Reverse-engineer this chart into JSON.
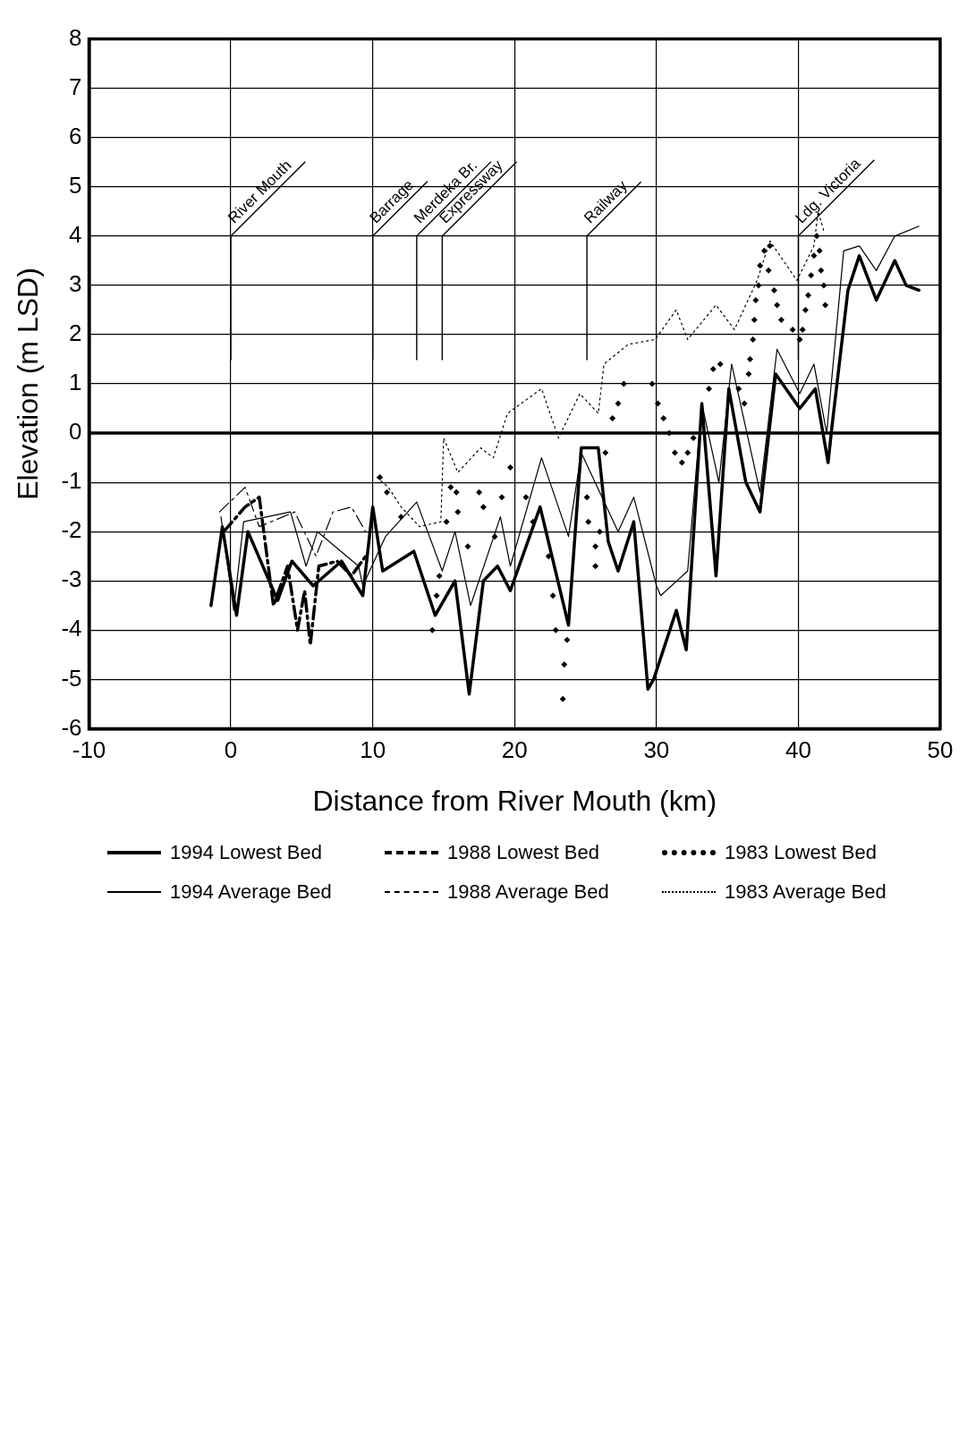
{
  "chart_data": {
    "type": "line",
    "xlabel": "Distance from River Mouth (km)",
    "ylabel": "Elevation (m LSD)",
    "xlim": [
      -10,
      50
    ],
    "xticks": [
      -10,
      0,
      10,
      20,
      30,
      40,
      50
    ],
    "ylim": [
      -6,
      8
    ],
    "yticks": [
      -6,
      -5,
      -4,
      -3,
      -2,
      -1,
      0,
      1,
      2,
      3,
      4,
      5,
      6,
      7,
      8
    ],
    "grid": true,
    "legend": "bottom",
    "ref_lines": [
      {
        "axis": "y",
        "value": 0
      },
      {
        "axis": "x",
        "value": 0,
        "label": "River Mouth"
      },
      {
        "axis": "x",
        "value": 10,
        "label": "Barrage"
      },
      {
        "axis": "x",
        "value": 13.1,
        "label": "Merdeka Br."
      },
      {
        "axis": "x",
        "value": 14.9,
        "label": "Expressway"
      },
      {
        "axis": "x",
        "value": 25.1,
        "label": "Railway"
      },
      {
        "axis": "x",
        "value": 40,
        "label": "Ldg. Victoria"
      }
    ],
    "series": [
      {
        "name": "1994 Lowest Bed",
        "type": "line",
        "line_style": "solid",
        "color": "#000000",
        "x": [
          -1.4,
          -0.6,
          0.4,
          1.2,
          3.3,
          4.3,
          5.8,
          7.8,
          9.3,
          10.0,
          10.7,
          12.9,
          14.4,
          15.8,
          16.8,
          17.8,
          18.8,
          19.7,
          21.8,
          23.8,
          24.7,
          25.9,
          26.6,
          27.3,
          28.4,
          29.4,
          29.8,
          31.4,
          32.1,
          33.2,
          34.2,
          35.1,
          36.3,
          37.3,
          38.4,
          40.1,
          41.2,
          42.1,
          42.4,
          43.5,
          44.3,
          45.5,
          46.8,
          47.6,
          48.5
        ],
        "values": [
          -3.5,
          -1.9,
          -3.7,
          -2.0,
          -3.4,
          -2.6,
          -3.1,
          -2.6,
          -3.3,
          -1.5,
          -2.8,
          -2.4,
          -3.7,
          -3.0,
          -5.3,
          -3.0,
          -2.7,
          -3.2,
          -1.5,
          -3.9,
          -0.3,
          -0.3,
          -2.2,
          -2.8,
          -1.8,
          -5.2,
          -5.0,
          -3.6,
          -4.4,
          0.6,
          -2.9,
          0.9,
          -1.0,
          -1.6,
          1.2,
          0.5,
          0.9,
          -0.6,
          0.2,
          2.9,
          3.6,
          2.7,
          3.5,
          3.0,
          2.9
        ]
      },
      {
        "name": "1994 Average Bed",
        "type": "line",
        "line_style": "solid",
        "color": "#000000",
        "x": [
          -0.7,
          0.2,
          0.9,
          4.2,
          5.3,
          6.1,
          9.0,
          9.3,
          10.9,
          13.1,
          14.9,
          15.8,
          16.9,
          19.0,
          19.7,
          21.9,
          23.8,
          24.7,
          27.3,
          28.4,
          30.0,
          30.3,
          32.2,
          33.2,
          34.4,
          35.3,
          37.3,
          38.5,
          40.1,
          41.1,
          42.0,
          43.2,
          44.3,
          45.5,
          46.8,
          48.5
        ],
        "values": [
          -1.7,
          -3.6,
          -1.8,
          -1.6,
          -2.7,
          -2.0,
          -2.7,
          -3.1,
          -2.1,
          -1.4,
          -2.8,
          -2.0,
          -3.5,
          -1.7,
          -2.7,
          -0.5,
          -2.1,
          -0.4,
          -2.0,
          -1.3,
          -3.1,
          -3.3,
          -2.8,
          0.6,
          -1.0,
          1.4,
          -1.2,
          1.7,
          0.8,
          1.4,
          0.0,
          3.7,
          3.8,
          3.3,
          4.0,
          4.2
        ]
      },
      {
        "name": "1988 Lowest Bed",
        "type": "line",
        "line_style": "dashed",
        "color": "#000000",
        "x": [
          -0.5,
          1.0,
          2.0,
          3.0,
          4.0,
          4.7,
          5.2,
          5.6,
          6.2,
          7.5,
          8.5,
          9.5
        ],
        "values": [
          -2.0,
          -1.5,
          -1.3,
          -3.5,
          -2.7,
          -4.0,
          -3.2,
          -4.3,
          -2.7,
          -2.6,
          -2.9,
          -2.5
        ]
      },
      {
        "name": "1988 Average Bed",
        "type": "line",
        "line_style": "dashed",
        "color": "#000000",
        "x": [
          -0.8,
          1.0,
          2.0,
          4.5,
          6.0,
          7.2,
          8.5,
          9.5
        ],
        "values": [
          -1.6,
          -1.1,
          -1.9,
          -1.6,
          -2.5,
          -1.6,
          -1.5,
          -2.0
        ]
      },
      {
        "name": "1983 Lowest Bed",
        "type": "scatter",
        "marker": "diamond",
        "color": "#000000",
        "x": [
          10.5,
          11.0,
          12.0,
          14.2,
          14.5,
          14.7,
          15.2,
          15.5,
          15.9,
          16.0,
          16.7,
          17.5,
          17.8,
          18.6,
          19.1,
          19.7,
          20.8,
          21.3,
          22.4,
          22.7,
          22.9,
          23.4,
          23.5,
          23.7,
          25.1,
          25.2,
          25.7,
          25.7,
          26.0,
          26.4,
          26.9,
          27.3,
          27.7,
          29.7,
          30.1,
          30.5,
          30.9,
          31.3,
          31.8,
          32.2,
          32.6,
          33.7,
          34.0,
          34.5,
          35.8,
          36.2,
          36.5,
          36.6,
          36.8,
          36.9,
          37.0,
          37.2,
          37.3,
          37.6,
          37.9,
          38.0,
          38.3,
          38.5,
          38.8,
          39.6,
          40.1,
          40.3,
          40.5,
          40.7,
          40.9,
          41.1,
          41.3,
          41.5,
          41.6,
          41.8,
          41.9
        ],
        "values": [
          -0.9,
          -1.2,
          -1.7,
          -4.0,
          -3.3,
          -2.9,
          -1.8,
          -1.1,
          -1.2,
          -1.6,
          -2.3,
          -1.2,
          -1.5,
          -2.1,
          -1.3,
          -0.7,
          -1.3,
          -1.8,
          -2.5,
          -3.3,
          -4.0,
          -5.4,
          -4.7,
          -4.2,
          -1.3,
          -1.8,
          -2.3,
          -2.7,
          -2.0,
          -0.4,
          0.3,
          0.6,
          1.0,
          1.0,
          0.6,
          0.3,
          0.0,
          -0.4,
          -0.6,
          -0.4,
          -0.1,
          0.9,
          1.3,
          1.4,
          0.9,
          0.6,
          1.2,
          1.5,
          1.9,
          2.3,
          2.7,
          3.0,
          3.4,
          3.7,
          3.3,
          3.8,
          2.9,
          2.6,
          2.3,
          2.1,
          1.9,
          2.1,
          2.5,
          2.8,
          3.2,
          3.6,
          4.0,
          3.7,
          3.3,
          3.0,
          2.6
        ]
      },
      {
        "name": "1983 Average Bed",
        "type": "line",
        "line_style": "dotted",
        "color": "#000000",
        "x": [
          10.3,
          11.1,
          12.0,
          13.3,
          14.8,
          15.0,
          16.0,
          17.6,
          18.5,
          19.5,
          21.9,
          23.1,
          24.6,
          25.9,
          26.3,
          28.0,
          29.9,
          31.4,
          32.2,
          34.2,
          35.5,
          37.1,
          38.0,
          39.9,
          41.1,
          41.4,
          41.8
        ],
        "values": [
          -0.9,
          -1.1,
          -1.5,
          -1.9,
          -1.8,
          -0.1,
          -0.8,
          -0.3,
          -0.5,
          0.4,
          0.9,
          -0.1,
          0.8,
          0.4,
          1.4,
          1.8,
          1.9,
          2.5,
          1.9,
          2.6,
          2.1,
          3.1,
          3.9,
          3.1,
          3.8,
          4.5,
          4.1
        ]
      }
    ]
  }
}
